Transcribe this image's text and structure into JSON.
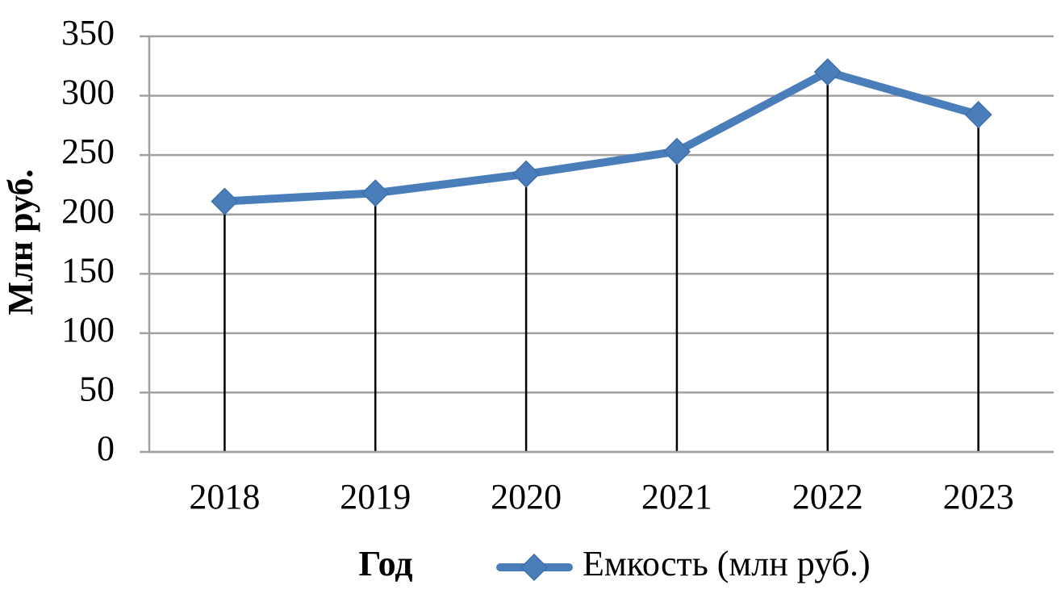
{
  "chart_data": {
    "type": "line",
    "x_label": "Год",
    "y_label": "Млн руб.",
    "categories": [
      "2018",
      "2019",
      "2020",
      "2021",
      "2022",
      "2023"
    ],
    "series": [
      {
        "name": "Емкость (млн руб.)",
        "color": "#4a7ebb",
        "values": [
          211,
          218,
          234,
          253,
          320,
          284
        ]
      }
    ],
    "ylim": [
      0,
      350
    ],
    "yticks": [
      0,
      50,
      100,
      150,
      200,
      250,
      300,
      350
    ],
    "grid": true,
    "drop_lines": true,
    "legend": "bottom"
  }
}
